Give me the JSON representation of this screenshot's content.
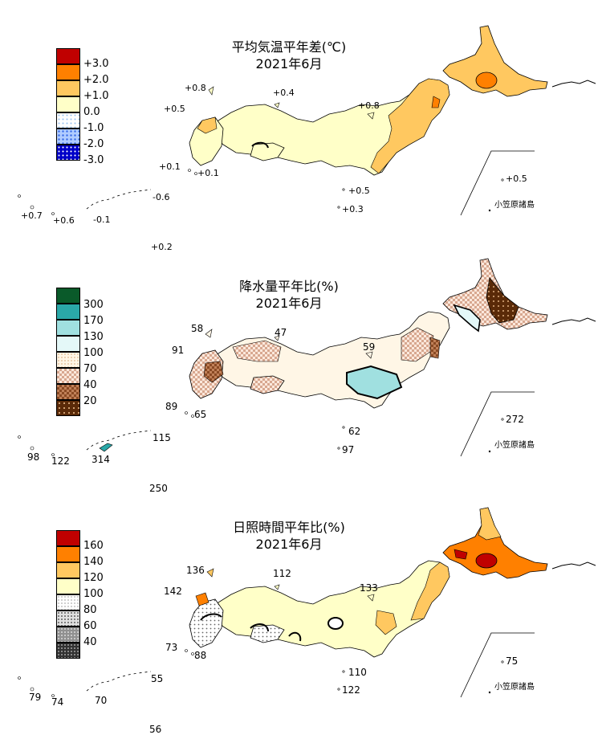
{
  "panels": [
    {
      "title_line1": "平均気温平年差(℃)",
      "title_line2": "2021年6月",
      "legend": [
        {
          "label": "+3.0",
          "color": "#c00000",
          "pattern": "solid"
        },
        {
          "label": "+2.0",
          "color": "#ff8000",
          "pattern": "solid"
        },
        {
          "label": "+1.0",
          "color": "#ffc860",
          "pattern": "solid"
        },
        {
          "label": "0.0",
          "color": "#ffffc8",
          "pattern": "solid"
        },
        {
          "label": "-1.0",
          "color": "#b4dcff",
          "pattern": "dots-light"
        },
        {
          "label": "-2.0",
          "color": "#5a8cff",
          "pattern": "dots-mid"
        },
        {
          "label": "-3.0",
          "color": "#0000c8",
          "pattern": "dots-dark"
        }
      ],
      "values": {
        "v1": "+0.8",
        "v2": "+0.4",
        "v3": "+0.5",
        "v4": "+0.8",
        "v5": "+0.1",
        "v6": "+0.1",
        "v7": "+0.5",
        "v8": "+0.3",
        "v9": "-0.6",
        "v10": "+0.7",
        "v11": "+0.6",
        "v12": "-0.1",
        "v13": "+0.2",
        "v14": "+0.5"
      },
      "ogasawara": "小笠原諸島"
    },
    {
      "title_line1": "降水量平年比(%)",
      "title_line2": "2021年6月",
      "legend": [
        {
          "label": "300",
          "color": "#0a5a2a",
          "pattern": "solid"
        },
        {
          "label": "170",
          "color": "#2aa8a8",
          "pattern": "solid"
        },
        {
          "label": "130",
          "color": "#a0e0e0",
          "pattern": "solid"
        },
        {
          "label": "100",
          "color": "#e4f8f8",
          "pattern": "solid"
        },
        {
          "label": "70",
          "color": "#fff6e6",
          "pattern": "solid"
        },
        {
          "label": "40",
          "color": "#e8c0a8",
          "pattern": "check"
        },
        {
          "label": "20",
          "color": "#b87850",
          "pattern": "check-dark"
        }
      ],
      "extra_legend_color": "#5a2a08",
      "values": {
        "v1": "58",
        "v2": "47",
        "v3": "91",
        "v4": "59",
        "v5": "89",
        "v6": "65",
        "v7": "62",
        "v8": "97",
        "v9": "115",
        "v10": "98",
        "v11": "122",
        "v12": "314",
        "v13": "250",
        "v14": "272"
      },
      "ogasawara": "小笠原諸島"
    },
    {
      "title_line1": "日照時間平年比(%)",
      "title_line2": "2021年6月",
      "legend": [
        {
          "label": "160",
          "color": "#c00000",
          "pattern": "solid"
        },
        {
          "label": "140",
          "color": "#ff8000",
          "pattern": "solid"
        },
        {
          "label": "120",
          "color": "#ffc860",
          "pattern": "solid"
        },
        {
          "label": "100",
          "color": "#ffffc8",
          "pattern": "solid"
        },
        {
          "label": "80",
          "color": "#ffffff",
          "pattern": "dots-light"
        },
        {
          "label": "60",
          "color": "#c8c8c8",
          "pattern": "dots-mid"
        },
        {
          "label": "40",
          "color": "#828282",
          "pattern": "dots-dark"
        }
      ],
      "extra_legend_color": "#323232",
      "values": {
        "v1": "136",
        "v2": "112",
        "v3": "142",
        "v4": "133",
        "v5": "73",
        "v6": "88",
        "v7": "110",
        "v8": "122",
        "v9": "55",
        "v10": "79",
        "v11": "74",
        "v12": "70",
        "v13": "56",
        "v14": "75"
      },
      "ogasawara": "小笠原諸島"
    }
  ]
}
